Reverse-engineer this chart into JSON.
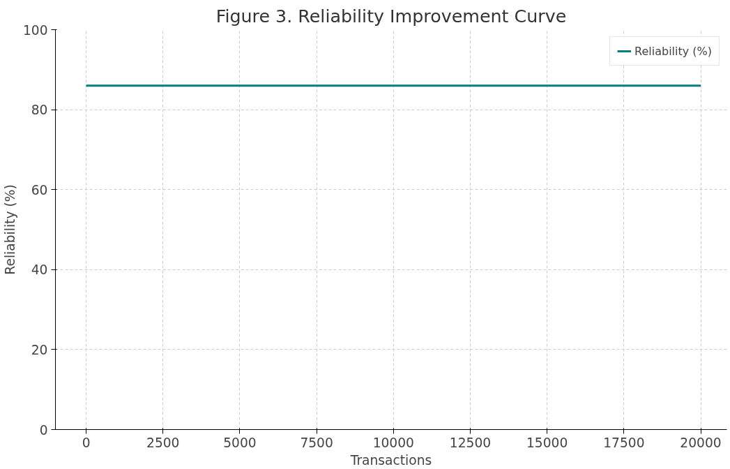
{
  "chart_data": {
    "type": "line",
    "title": "Figure 3. Reliability Improvement Curve",
    "xlabel": "Transactions",
    "ylabel": "Reliability (%)",
    "x": [
      0,
      20000
    ],
    "series": [
      {
        "name": "Reliability (%)",
        "color": "#008080",
        "values": [
          86,
          86
        ]
      }
    ],
    "xlim": [
      -1000,
      20850
    ],
    "ylim": [
      0,
      100
    ],
    "xticks": [
      0,
      2500,
      5000,
      7500,
      10000,
      12500,
      15000,
      17500,
      20000
    ],
    "yticks": [
      0,
      20,
      40,
      60,
      80,
      100
    ],
    "grid": true,
    "legend": "top right",
    "line_style": "solid"
  }
}
